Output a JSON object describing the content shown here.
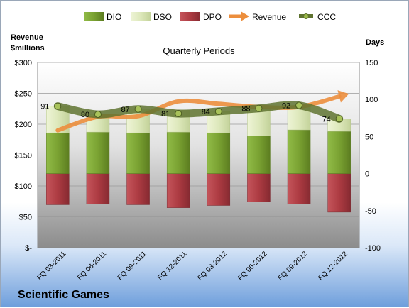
{
  "chart_data": {
    "type": "bar",
    "company": "Scientific Games",
    "subtitle": "Quarterly Periods",
    "left_axis_label_line1": "Revenue",
    "left_axis_label_line2": "$millions",
    "right_axis_label": "Days",
    "categories": [
      "FQ 03-2011",
      "FQ 06-2011",
      "FQ 09-2011",
      "FQ 12-2011",
      "FQ 03-2012",
      "FQ 06-2012",
      "FQ 09-2012",
      "FQ 12-2012"
    ],
    "left_axis": {
      "ylim": [
        0,
        300
      ],
      "ticks": [
        0,
        50,
        100,
        150,
        200,
        250,
        300
      ],
      "tick_labels": [
        "$-",
        "$50",
        "$100",
        "$150",
        "$200",
        "$250",
        "$300"
      ]
    },
    "right_axis": {
      "ylim": [
        -100,
        150
      ],
      "ticks": [
        -100,
        -50,
        0,
        50,
        100,
        150
      ],
      "tick_labels": [
        "-100",
        "-50",
        "0",
        "50",
        "100",
        "150"
      ]
    },
    "series": [
      {
        "name": "DIO",
        "axis": "right",
        "values": [
          55,
          56,
          55,
          56,
          55,
          51,
          59,
          57
        ]
      },
      {
        "name": "DSO",
        "axis": "right",
        "values": [
          36,
          24,
          32,
          30,
          29,
          37,
          33,
          17
        ]
      },
      {
        "name": "DPO",
        "axis": "right",
        "values": [
          -42,
          -41,
          -42,
          -46,
          -43,
          -38,
          -41,
          -52
        ]
      },
      {
        "name": "Revenue",
        "axis": "left",
        "values": [
          190,
          212,
          213,
          237,
          233,
          228,
          228,
          245
        ]
      },
      {
        "name": "CCC",
        "axis": "right",
        "values": [
          91,
          80,
          87,
          81,
          84,
          88,
          92,
          74
        ],
        "labels": [
          "91",
          "80",
          "87",
          "81",
          "84",
          "88",
          "92",
          "74"
        ]
      }
    ],
    "legend_position": "top",
    "colors": {
      "DIO": "#7fa835",
      "DSO": "#dfeac0",
      "DPO": "#b5434a",
      "Revenue": "#ec8e3d",
      "CCC": "#5f7330"
    }
  }
}
